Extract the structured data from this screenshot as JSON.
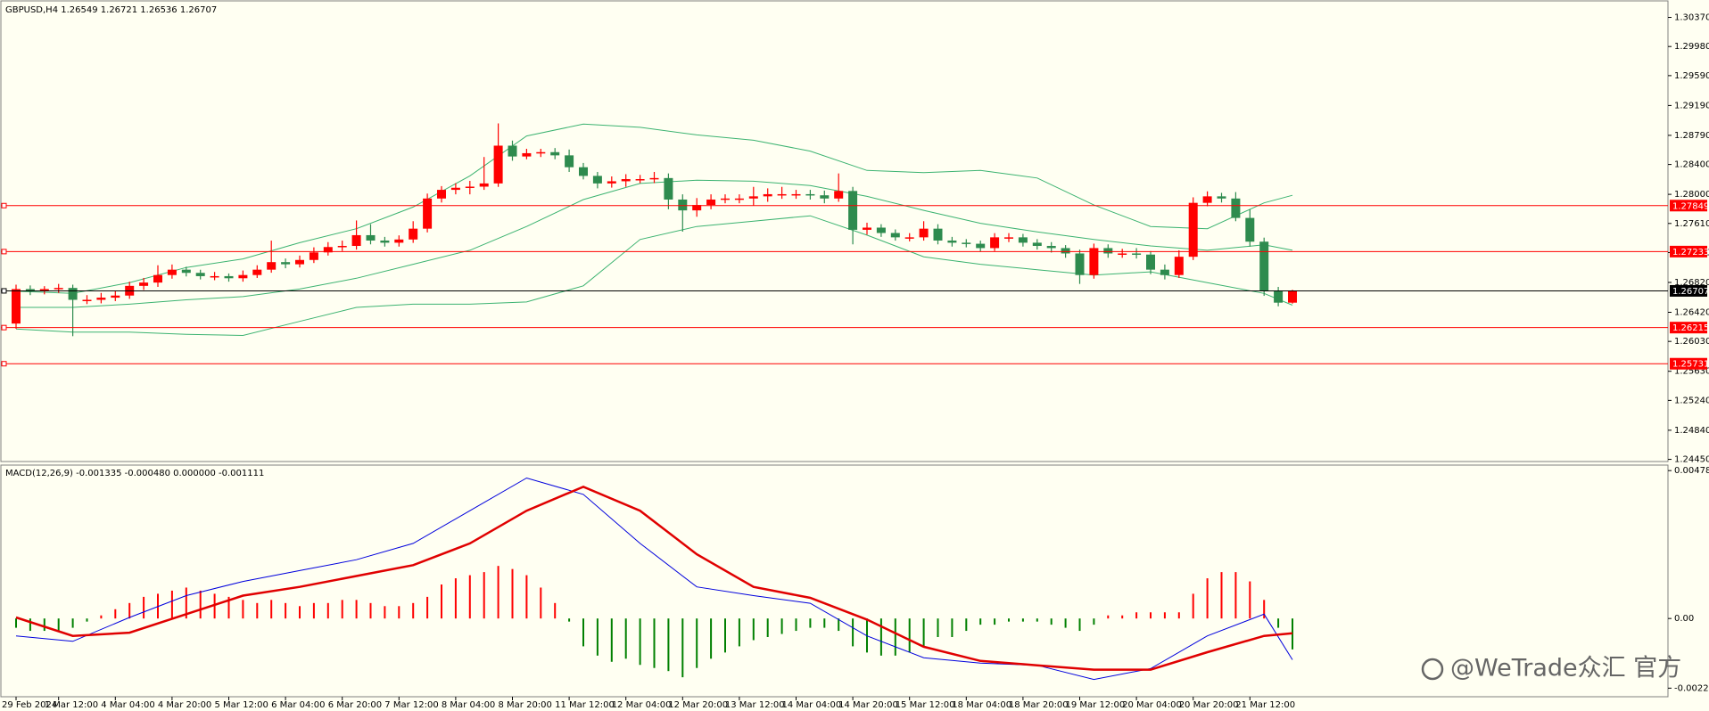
{
  "chart_data": [
    {
      "type": "candlestick",
      "header": "GBPUSD,H4  1.26549 1.26721 1.26536 1.26707",
      "up_color": "#ff0000",
      "down_color": "#2e8b4e",
      "open": [
        1.26269,
        1.26731,
        1.26702,
        1.26731,
        1.26746,
        1.26587,
        1.26587,
        1.26616,
        1.26644,
        1.26774,
        1.26818,
        1.26919,
        1.26991,
        1.26948,
        1.26904,
        1.26904,
        1.26876,
        1.26919,
        1.26991,
        1.27092,
        1.27063,
        1.27121,
        1.27222,
        1.27294,
        1.27309,
        1.27453,
        1.27381,
        1.27352,
        1.27395,
        1.2754,
        1.27944,
        1.2806,
        1.28088,
        1.28103,
        1.28146,
        1.28652,
        1.28507,
        1.28551,
        1.28565,
        1.28522,
        1.28363,
        1.28247,
        1.28146,
        1.28175,
        1.28204,
        1.28204,
        1.28218,
        1.2793,
        1.27785,
        1.27857,
        1.2793,
        1.27944,
        1.27944,
        1.27973,
        1.28002,
        1.28002,
        1.28002,
        1.27987,
        1.27944,
        1.28045,
        1.27525,
        1.27554,
        1.27482,
        1.27424,
        1.27424,
        1.2754,
        1.27381,
        1.27352,
        1.27338,
        1.2728,
        1.27424,
        1.27424,
        1.27352,
        1.27309,
        1.2728,
        1.27208,
        1.26919,
        1.2728,
        1.27208,
        1.27208,
        1.27193,
        1.26991,
        1.26919,
        1.27164,
        1.27886,
        1.27973,
        1.27944,
        1.27684,
        1.27366,
        1.26702,
        1.26549
      ],
      "high": [
        1.2679,
        1.2678,
        1.2677,
        1.268,
        1.2679,
        1.2665,
        1.2668,
        1.267,
        1.2683,
        1.2688,
        1.2705,
        1.2706,
        1.2703,
        1.2699,
        1.2696,
        1.2694,
        1.2698,
        1.2705,
        1.2738,
        1.2714,
        1.2718,
        1.2729,
        1.2736,
        1.2738,
        1.2765,
        1.276,
        1.2743,
        1.2745,
        1.2764,
        1.2801,
        1.2811,
        1.2815,
        1.2818,
        1.285,
        1.2895,
        1.2872,
        1.2861,
        1.2861,
        1.2862,
        1.286,
        1.2842,
        1.283,
        1.2824,
        1.2827,
        1.2826,
        1.283,
        1.2828,
        1.28,
        1.2795,
        1.28,
        1.28,
        1.28,
        1.281,
        1.2808,
        1.281,
        1.2806,
        1.2806,
        1.2805,
        1.2828,
        1.281,
        1.2762,
        1.276,
        1.2753,
        1.2748,
        1.2764,
        1.276,
        1.2743,
        1.274,
        1.2738,
        1.2748,
        1.2748,
        1.2747,
        1.274,
        1.2736,
        1.2732,
        1.2726,
        1.2734,
        1.2733,
        1.2727,
        1.2728,
        1.2724,
        1.2706,
        1.2725,
        1.2796,
        1.2804,
        1.2802,
        1.2803,
        1.278,
        1.2742,
        1.2676,
        1.26721
      ],
      "low": [
        1.262,
        1.2665,
        1.2666,
        1.2668,
        1.261,
        1.2653,
        1.2654,
        1.2657,
        1.266,
        1.2672,
        1.2676,
        1.2687,
        1.269,
        1.2686,
        1.2685,
        1.2683,
        1.2683,
        1.2688,
        1.2695,
        1.2701,
        1.2702,
        1.2708,
        1.2718,
        1.2724,
        1.2726,
        1.2733,
        1.273,
        1.273,
        1.2735,
        1.2749,
        1.2789,
        1.28,
        1.28,
        1.2806,
        1.281,
        1.2845,
        1.2847,
        1.285,
        1.2847,
        1.283,
        1.282,
        1.2808,
        1.2809,
        1.281,
        1.2815,
        1.2815,
        1.278,
        1.275,
        1.277,
        1.278,
        1.2788,
        1.2788,
        1.2785,
        1.279,
        1.2794,
        1.2794,
        1.2793,
        1.2788,
        1.279,
        1.2733,
        1.2746,
        1.2743,
        1.2738,
        1.2737,
        1.2738,
        1.2733,
        1.273,
        1.2729,
        1.2723,
        1.2724,
        1.2736,
        1.273,
        1.2726,
        1.2722,
        1.2715,
        1.268,
        1.2687,
        1.2715,
        1.2715,
        1.2714,
        1.2693,
        1.2686,
        1.2688,
        1.2712,
        1.2784,
        1.2789,
        1.2764,
        1.273,
        1.2664,
        1.265,
        1.26536
      ],
      "close": [
        1.26731,
        1.26702,
        1.26731,
        1.26746,
        1.26587,
        1.26587,
        1.26616,
        1.26644,
        1.26774,
        1.26818,
        1.26919,
        1.26991,
        1.26948,
        1.26904,
        1.26904,
        1.26876,
        1.26919,
        1.26991,
        1.27092,
        1.27063,
        1.27121,
        1.27222,
        1.27294,
        1.27309,
        1.27453,
        1.27381,
        1.27352,
        1.27395,
        1.2754,
        1.27944,
        1.2806,
        1.28088,
        1.28103,
        1.28146,
        1.28652,
        1.28507,
        1.28551,
        1.28565,
        1.28522,
        1.28363,
        1.28247,
        1.28146,
        1.28175,
        1.28204,
        1.28204,
        1.28218,
        1.2793,
        1.27785,
        1.27857,
        1.2793,
        1.27944,
        1.27944,
        1.27973,
        1.28002,
        1.28002,
        1.28002,
        1.27987,
        1.27944,
        1.28045,
        1.27525,
        1.27554,
        1.27482,
        1.27424,
        1.27424,
        1.2754,
        1.27381,
        1.27352,
        1.27338,
        1.2728,
        1.27424,
        1.27424,
        1.27352,
        1.27309,
        1.2728,
        1.27208,
        1.26919,
        1.2728,
        1.27208,
        1.27208,
        1.27193,
        1.26991,
        1.26919,
        1.27164,
        1.27886,
        1.27973,
        1.27944,
        1.27684,
        1.27366,
        1.26702,
        1.26549,
        1.26707
      ],
      "line_x": [
        0,
        4,
        8,
        12,
        16,
        20,
        24,
        28,
        32,
        36,
        40,
        44,
        48,
        52,
        56,
        60,
        64,
        68,
        72,
        76,
        80,
        84,
        88,
        90
      ],
      "lines": [
        {
          "color": "#3cb371",
          "values": [
            1.26702,
            1.26673,
            1.26818,
            1.2702,
            1.27135,
            1.27352,
            1.2754,
            1.27829,
            1.28247,
            1.28782,
            1.2894,
            1.28897,
            1.28796,
            1.28724,
            1.28579,
            1.2832,
            1.28291,
            1.2832,
            1.28218,
            1.27857,
            1.27569,
            1.2754,
            1.27886,
            1.27987
          ]
        },
        {
          "color": "#3cb371",
          "values": [
            1.26486,
            1.26486,
            1.26529,
            1.26587,
            1.2663,
            1.26731,
            1.26876,
            1.27063,
            1.27251,
            1.27569,
            1.2793,
            1.28146,
            1.2819,
            1.28175,
            1.28117,
            1.27973,
            1.27785,
            1.27612,
            1.27496,
            1.27395,
            1.27309,
            1.27251,
            1.27323,
            1.27251
          ]
        },
        {
          "color": "#3cb371",
          "values": [
            1.26197,
            1.26154,
            1.26154,
            1.26125,
            1.2611,
            1.26298,
            1.26486,
            1.26529,
            1.26529,
            1.26558,
            1.26774,
            1.27395,
            1.27569,
            1.27641,
            1.27713,
            1.27453,
            1.27164,
            1.27063,
            1.26991,
            1.26919,
            1.26962,
            1.26818,
            1.26673,
            1.26515
          ]
        }
      ],
      "levels": [
        {
          "value": 1.27849,
          "label": "1.27849",
          "color": "#ff0000"
        },
        {
          "value": 1.27233,
          "label": "1.27233",
          "color": "#ff0000"
        },
        {
          "value": 1.26707,
          "label": "1.26707",
          "color": "#000000"
        },
        {
          "value": 1.26215,
          "label": "1.26215",
          "color": "#ff0000"
        },
        {
          "value": 1.25731,
          "label": "1.25731",
          "color": "#ff0000"
        }
      ],
      "ylim": [
        1.24421,
        1.30603
      ],
      "yticks": [
        {
          "value": 1.3037,
          "label": "1.30370"
        },
        {
          "value": 1.2998,
          "label": "1.29980"
        },
        {
          "value": 1.2959,
          "label": "1.29590"
        },
        {
          "value": 1.2919,
          "label": "1.29190"
        },
        {
          "value": 1.2879,
          "label": "1.28790"
        },
        {
          "value": 1.284,
          "label": "1.28400"
        },
        {
          "value": 1.28,
          "label": "1.28000"
        },
        {
          "value": 1.2761,
          "label": "1.27610"
        },
        {
          "value": 1.2722,
          "label": "1.27220"
        },
        {
          "value": 1.2682,
          "label": "1.26820"
        },
        {
          "value": 1.2642,
          "label": "1.26420"
        },
        {
          "value": 1.2603,
          "label": "1.26030"
        },
        {
          "value": 1.2563,
          "label": "1.25630"
        },
        {
          "value": 1.2524,
          "label": "1.25240"
        },
        {
          "value": 1.2484,
          "label": "1.24840"
        },
        {
          "value": 1.2445,
          "label": "1.24450"
        }
      ]
    },
    {
      "type": "macd",
      "title": "MACD(12,26,9) -0.001335 -0.000480 0.000000 -0.001111",
      "up_color": "#ff0000",
      "down_color": "#008000",
      "histogram": [
        -0.0003,
        -0.0004,
        -0.0004,
        -0.0004,
        -0.0003,
        -0.0001,
        0.0001,
        0.0003,
        0.0005,
        0.0007,
        0.0008,
        0.0009,
        0.001,
        0.0009,
        0.0008,
        0.0007,
        0.0006,
        0.0005,
        0.0006,
        0.0005,
        0.0004,
        0.0005,
        0.0005,
        0.0006,
        0.0006,
        0.0005,
        0.0004,
        0.0004,
        0.0005,
        0.0007,
        0.0011,
        0.0013,
        0.0014,
        0.0015,
        0.0017,
        0.0016,
        0.0014,
        0.001,
        0.0005,
        -0.0001,
        -0.0009,
        -0.0012,
        -0.0014,
        -0.0013,
        -0.0015,
        -0.0016,
        -0.0017,
        -0.0019,
        -0.0016,
        -0.0013,
        -0.0011,
        -0.0009,
        -0.0007,
        -0.0006,
        -0.0005,
        -0.0004,
        -0.0003,
        -0.0003,
        -0.0004,
        -0.0009,
        -0.0011,
        -0.0012,
        -0.0012,
        -0.0011,
        -0.0009,
        -0.0006,
        -0.0006,
        -0.0004,
        -0.0002,
        -0.0002,
        -0.0001,
        -0.0001,
        -0.0001,
        -0.0002,
        -0.0003,
        -0.0004,
        -0.0002,
        0.0001,
        0.0001,
        0.0002,
        0.0002,
        0.0002,
        0.0002,
        0.0008,
        0.0013,
        0.0015,
        0.0015,
        0.0012,
        0.0006,
        -0.0003,
        -0.001
      ],
      "line_x": [
        0,
        4,
        8,
        12,
        16,
        20,
        24,
        28,
        32,
        36,
        40,
        44,
        48,
        52,
        56,
        60,
        64,
        68,
        72,
        76,
        80,
        84,
        88,
        90
      ],
      "lines": [
        {
          "color": "#0000dd",
          "width": 1,
          "values": [
            -0.000563,
            -0.000739,
            3.5e-05,
            0.000739,
            0.001197,
            0.001549,
            0.001901,
            0.002429,
            0.003485,
            0.004541,
            0.004013,
            0.002429,
            0.001021,
            0.000739,
            0.000493,
            -0.000563,
            -0.001267,
            -0.001443,
            -0.001514,
            -0.001971,
            -0.001619,
            -0.000563,
            0.000141,
            -0.001335
          ]
        },
        {
          "color": "#e00000",
          "width": 2.5,
          "values": [
            3.5e-05,
            -0.000563,
            -0.000458,
            0.000141,
            0.000739,
            0.001021,
            0.001373,
            0.001725,
            0.002429,
            0.003485,
            0.004259,
            0.003485,
            0.002077,
            0.001021,
            0.000669,
            -3.5e-05,
            -0.000915,
            -0.001373,
            -0.001514,
            -0.001654,
            -0.001654,
            -0.001091,
            -0.000563,
            -0.00048
          ]
        }
      ],
      "ylim": [
        -0.00253,
        0.00496
      ],
      "yticks": [
        0.004782,
        {
          "value": 0,
          "label": "0.00"
        },
        -0.002252
      ],
      "xticks": [
        {
          "value": 0,
          "label": "29 Feb 2024"
        },
        {
          "value": 3,
          "label": "1 Mar 12:00"
        },
        {
          "value": 7,
          "label": "4 Mar 04:00"
        },
        {
          "value": 11,
          "label": "4 Mar 20:00"
        },
        {
          "value": 15,
          "label": "5 Mar 12:00"
        },
        {
          "value": 19,
          "label": "6 Mar 04:00"
        },
        {
          "value": 23,
          "label": "6 Mar 20:00"
        },
        {
          "value": 27,
          "label": "7 Mar 12:00"
        },
        {
          "value": 31,
          "label": "8 Mar 04:00"
        },
        {
          "value": 35,
          "label": "8 Mar 20:00"
        },
        {
          "value": 39,
          "label": "11 Mar 12:00"
        },
        {
          "value": 43,
          "label": "12 Mar 04:00"
        },
        {
          "value": 47,
          "label": "12 Mar 20:00"
        },
        {
          "value": 51,
          "label": "13 Mar 12:00"
        },
        {
          "value": 55,
          "label": "14 Mar 04:00"
        },
        {
          "value": 59,
          "label": "14 Mar 20:00"
        },
        {
          "value": 63,
          "label": "15 Mar 12:00"
        },
        {
          "value": 67,
          "label": "18 Mar 04:00"
        },
        {
          "value": 71,
          "label": "18 Mar 20:00"
        },
        {
          "value": 75,
          "label": "19 Mar 12:00"
        },
        {
          "value": 79,
          "label": "20 Mar 04:00"
        },
        {
          "value": 83,
          "label": "20 Mar 20:00"
        },
        {
          "value": 87,
          "label": "21 Mar 12:00"
        }
      ]
    }
  ],
  "watermark": "@WeTrade众汇 官方"
}
